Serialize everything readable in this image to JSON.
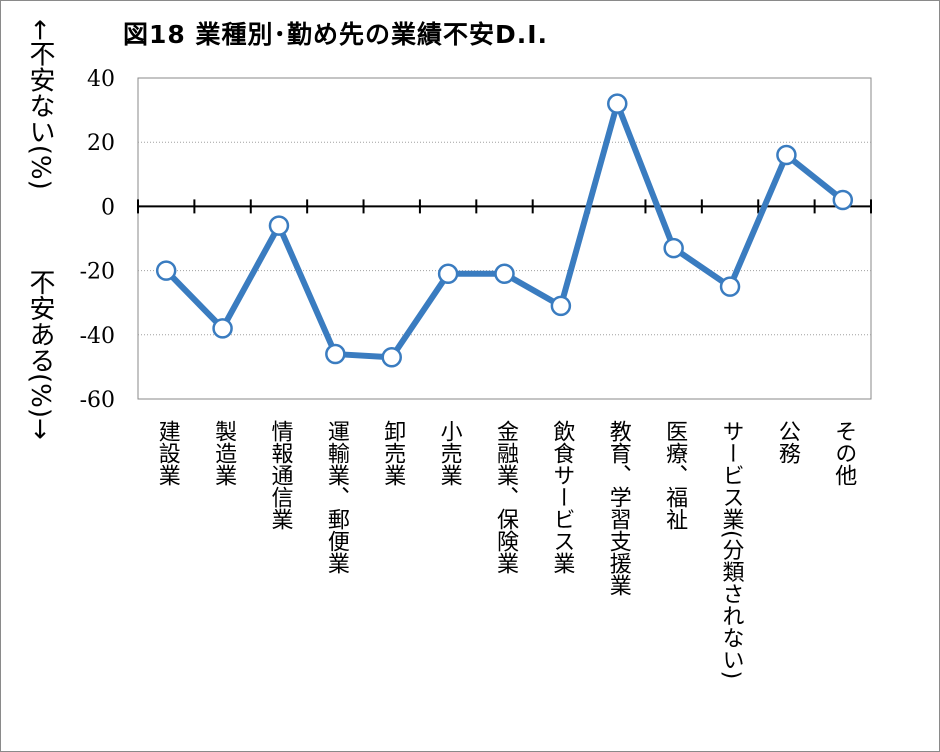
{
  "chart_data": {
    "type": "line",
    "title": "図18 業種別･勤め先の業績不安D.I.",
    "ylabel_upper": "←不安ない(%)",
    "ylabel_lower": "不安ある(%)→",
    "ylim": [
      -60,
      40
    ],
    "yticks": [
      40,
      20,
      0,
      -20,
      -40,
      -60
    ],
    "grid": true,
    "categories": [
      "建設業",
      "製造業",
      "情報通信業",
      "運輸業、郵便業",
      "卸売業",
      "小売業",
      "金融業、保険業",
      "飲食サービス業",
      "教育、学習支援業",
      "医療、福祉",
      "サービス業(分類されない)",
      "公務",
      "その他"
    ],
    "series": [
      {
        "color": "#3a7cc0",
        "values": [
          -20,
          -38,
          -6,
          -46,
          -47,
          -21,
          -21,
          -31,
          32,
          -13,
          -25,
          16,
          2
        ]
      }
    ]
  }
}
